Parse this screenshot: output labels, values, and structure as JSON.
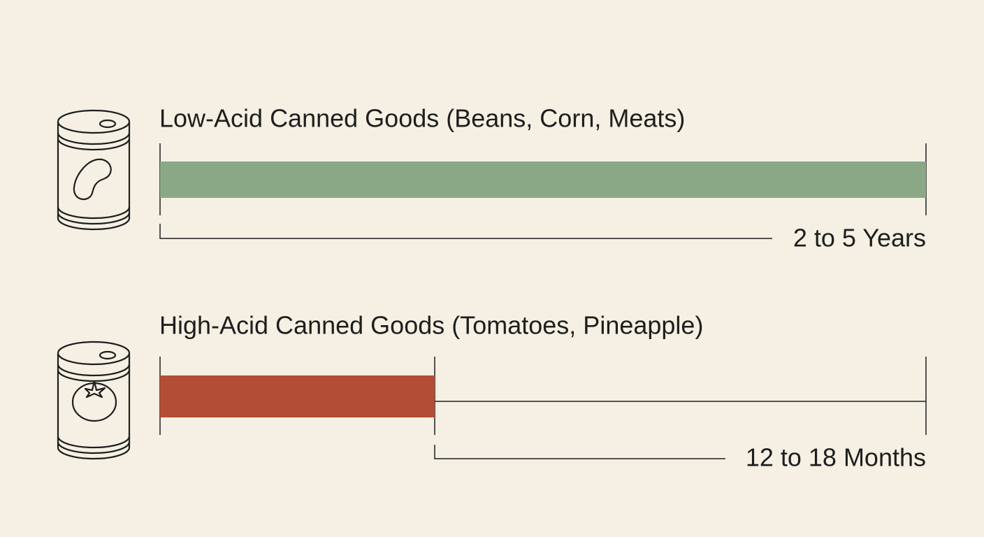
{
  "items": [
    {
      "title": "Low-Acid Canned Goods (Beans, Corn, Meats)",
      "duration": "2 to 5 Years"
    },
    {
      "title": "High-Acid Canned Goods (Tomatoes, Pineapple)",
      "duration": "12 to 18 Months"
    }
  ]
}
